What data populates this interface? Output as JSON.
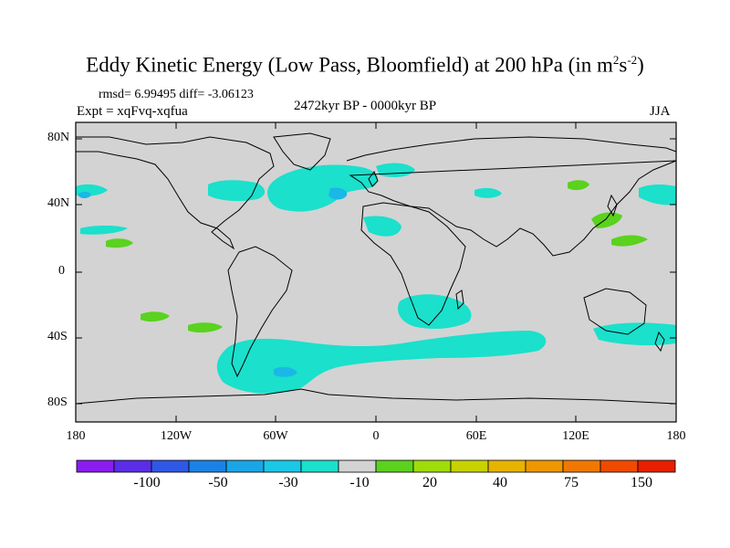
{
  "title": {
    "main": "Eddy Kinetic Energy (Low Pass, Bloomfield) at 200 hPa (in m",
    "sup1": "2",
    "mid": "s",
    "sup2": "-2",
    "end": ")"
  },
  "stats": "rmsd= 6.99495 diff= -3.06123",
  "experiment": "Expt = xqFvq-xqfua",
  "period": "2472kyr BP - 0000kyr BP",
  "season": "JJA",
  "lat_labels": [
    "80N",
    "40N",
    "0",
    "40S",
    "80S"
  ],
  "lon_labels": [
    "180",
    "120W",
    "60W",
    "0",
    "60E",
    "120E",
    "180"
  ],
  "colorbar": {
    "colors": [
      "#8a1cf0",
      "#5a2ee6",
      "#2f58e6",
      "#1a82e6",
      "#1aa6e6",
      "#1ac8e6",
      "#1ae0cc",
      "#d3d3d3",
      "#5ad21e",
      "#a0dc0a",
      "#c8d200",
      "#e6b400",
      "#f09600",
      "#f07800",
      "#f04a00",
      "#e62000"
    ],
    "labels": [
      "-100",
      "-50",
      "-30",
      "-10",
      "20",
      "40",
      "75",
      "150"
    ]
  },
  "colors": {
    "land_ocean_bg": "#d3d3d3",
    "negative_fill": "#1ae0cc",
    "negative_core": "#1ab8e6",
    "positive_fill": "#5ad21e"
  }
}
